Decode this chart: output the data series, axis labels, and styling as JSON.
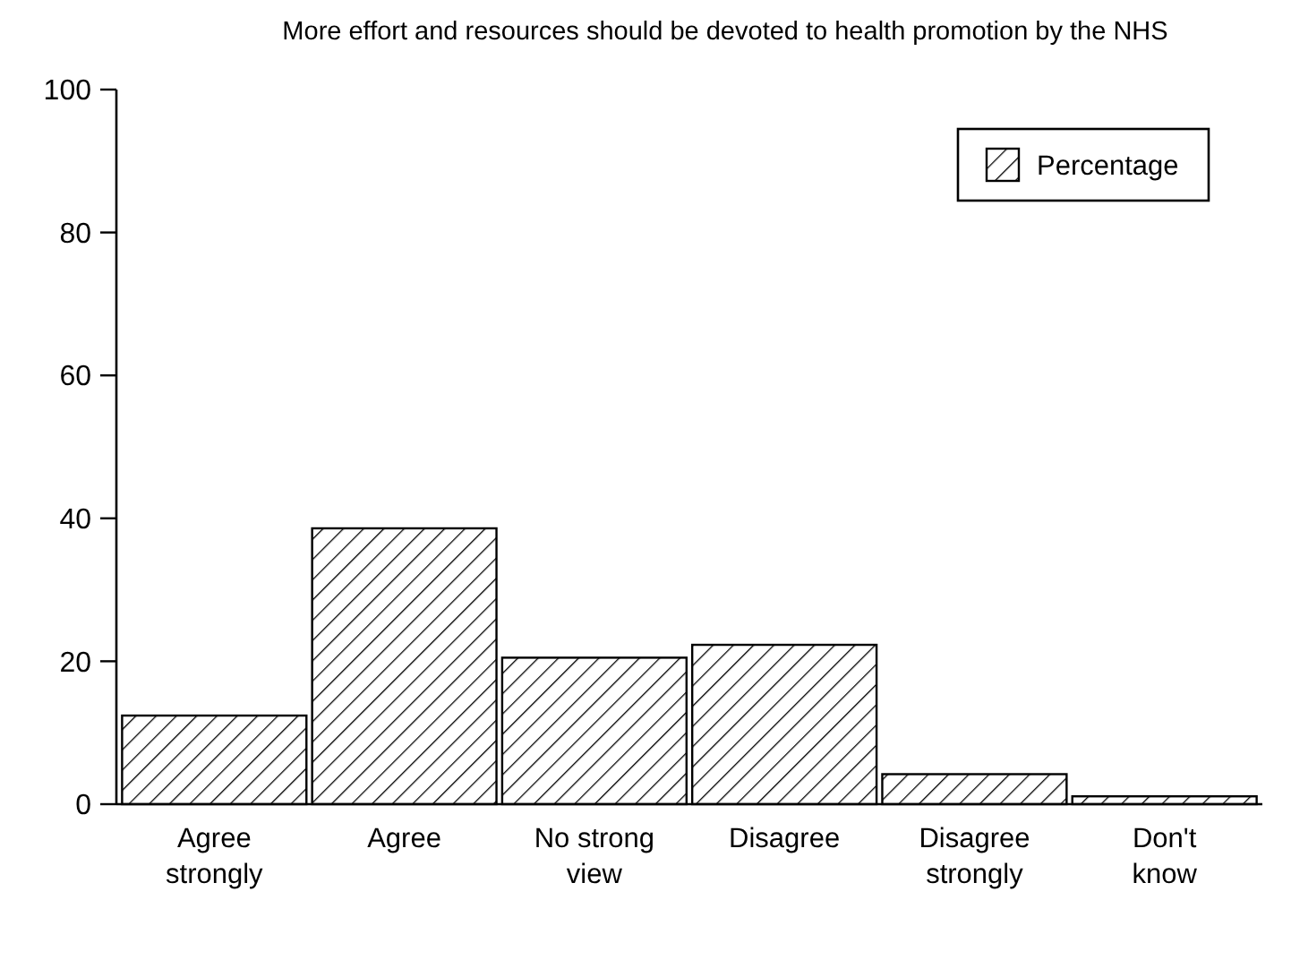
{
  "chart_data": {
    "type": "bar",
    "title": "More effort and resources should be devoted to health promotion by the NHS",
    "categories": [
      "Agree strongly",
      "Agree",
      "No strong view",
      "Disagree",
      "Disagree strongly",
      "Don't know"
    ],
    "series": [
      {
        "name": "Percentage",
        "color": "#000000",
        "values": [
          12.4,
          38.6,
          20.5,
          22.3,
          4.2,
          1.1
        ]
      }
    ],
    "ylim": [
      0,
      100
    ],
    "yticks": [
      0,
      20,
      40,
      60,
      80,
      100
    ],
    "grid": false,
    "legend": "top right"
  }
}
